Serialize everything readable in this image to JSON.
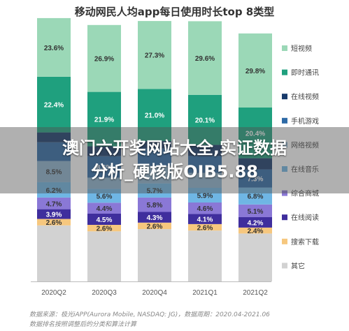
{
  "chart_data": {
    "type": "bar",
    "stacked": "percent",
    "title": "移动网民人均app每日使用时长top 8类型",
    "categories": [
      "2020Q2",
      "2020Q3",
      "2020Q4",
      "2021Q1",
      "2021Q2"
    ],
    "series": [
      {
        "name": "其它",
        "color": "#d2d2d2",
        "values": [
          null,
          null,
          null,
          null,
          null
        ]
      },
      {
        "name": "搜索下载",
        "color": "#f6c77e",
        "values": [
          2.6,
          2.6,
          2.6,
          2.6,
          2.4
        ]
      },
      {
        "name": "在线阅读",
        "color": "#3f2e9d",
        "values": [
          3.9,
          4.5,
          4.3,
          4.1,
          4.2
        ]
      },
      {
        "name": "综合商城",
        "color": "#8a78d6",
        "values": [
          4.7,
          4.4,
          5.8,
          4.6,
          5.1
        ]
      },
      {
        "name": "在线音乐",
        "color": "#6fb6e4",
        "values": [
          6.2,
          5.6,
          5.7,
          5.9,
          6.8
        ]
      },
      {
        "name": "网络视频",
        "color": "#8fb4cf",
        "values": [
          8.5,
          null,
          null,
          null,
          null
        ]
      },
      {
        "name": "手机游戏",
        "color": "#2e6aa6",
        "values": [
          null,
          8.6,
          null,
          null,
          7.3
        ]
      },
      {
        "name": "在线视频",
        "color": "#173a6b",
        "values": [
          null,
          null,
          null,
          null,
          null
        ]
      },
      {
        "name": "即时通讯",
        "color": "#1fa07e",
        "values": [
          22.4,
          21.9,
          21.0,
          20.1,
          20.4
        ]
      },
      {
        "name": "短视频",
        "color": "#9bd8b7",
        "values": [
          23.6,
          26.9,
          27.3,
          29.6,
          29.8
        ]
      }
    ],
    "legend_position": "right",
    "grid": false
  },
  "source_line_1": "数据来源：极光iAPP(Aurora Mobile, NASDAQ: JG)，数据周期：2020.04-2021.06",
  "source_line_2": "数据排名按照调整后的分类和算法计算",
  "overlay_text_1": "澳门六开奖网站大全,实证数据",
  "overlay_text_2": "分析_硬核版OIB5.88"
}
